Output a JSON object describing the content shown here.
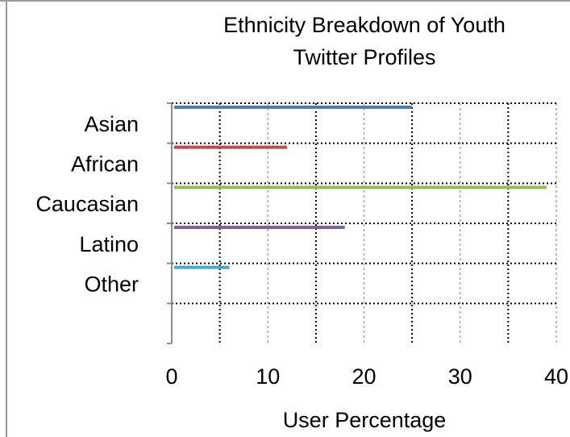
{
  "chart_data": {
    "type": "bar",
    "orientation": "horizontal",
    "title_lines": [
      "Ethnicity Breakdown of Youth",
      "Twitter Profiles"
    ],
    "categories": [
      "Asian",
      "African",
      "Caucasian",
      "Latino",
      "Other"
    ],
    "values": [
      25,
      12,
      39,
      18,
      6
    ],
    "colors": [
      "#4a7ebb",
      "#be4b48",
      "#98b954",
      "#7d60a0",
      "#46aac5"
    ],
    "xlabel": "User Percentage",
    "ylabel": "",
    "xlim": [
      0,
      40
    ],
    "xticks": [
      0,
      10,
      20,
      30,
      40
    ],
    "grid": true,
    "legend": "none"
  }
}
